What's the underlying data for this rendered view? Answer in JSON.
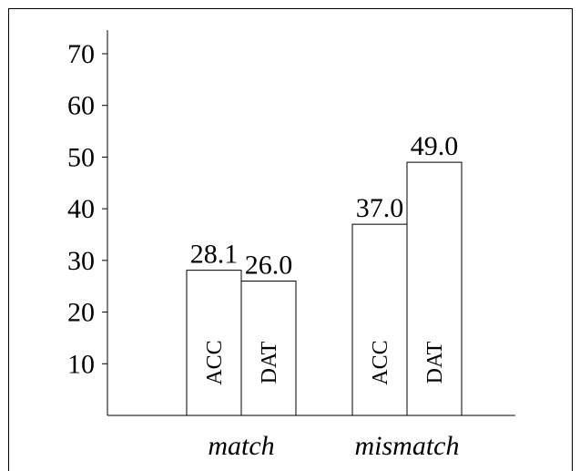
{
  "chart_data": {
    "type": "bar",
    "categories": [
      "match",
      "mismatch"
    ],
    "series": [
      {
        "name": "ACC",
        "values": [
          28.1,
          37.0
        ]
      },
      {
        "name": "DAT",
        "values": [
          26.0,
          49.0
        ]
      }
    ],
    "value_labels": [
      [
        "28.1",
        "26.0"
      ],
      [
        "37.0",
        "49.0"
      ]
    ],
    "y_ticks": [
      10,
      20,
      30,
      40,
      50,
      60,
      70
    ],
    "ylim": [
      0,
      70
    ],
    "title": "",
    "xlabel": "",
    "ylabel": "",
    "grid": false,
    "legend": "none",
    "bar_fill": "#ffffff",
    "bar_stroke": "#000000"
  }
}
